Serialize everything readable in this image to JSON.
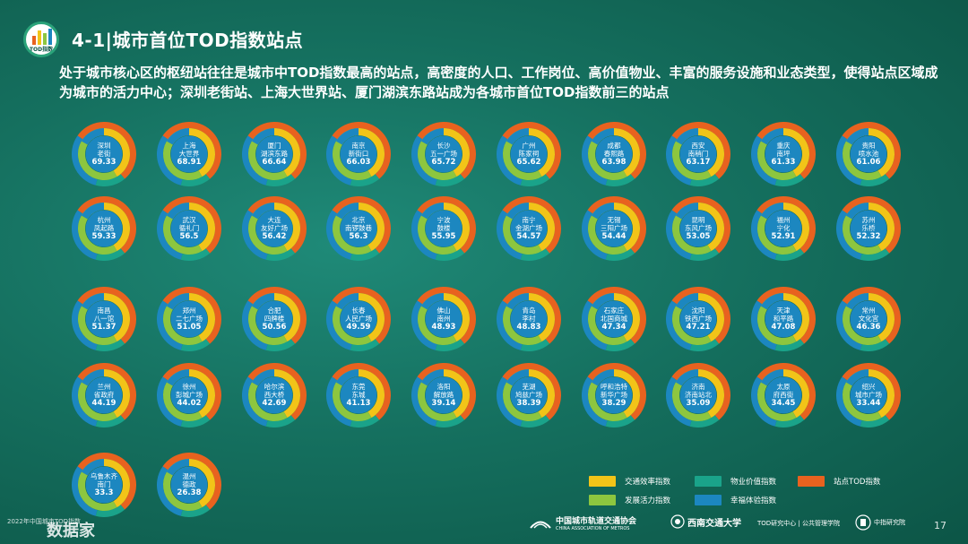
{
  "header": {
    "logo_text": "TOD指数",
    "title": "4-1|城市首位TOD指数站点",
    "intro": "处于城市核心区的枢纽站往往是城市中TOD指数最高的站点，高密度的人口、工作岗位、高价值物业、丰富的服务设施和业态类型，使得站点区域成为城市的活力中心；深圳老街站、上海大世界站、厦门湖滨东路站成为各城市首位TOD指数前三的站点"
  },
  "colors": {
    "traffic": "#f2c418",
    "property": "#1aa38a",
    "tod": "#e8621f",
    "development": "#8dc63f",
    "experience": "#1c87c0"
  },
  "stations": [
    {
      "city": "深圳",
      "station": "老街",
      "score": "69.33"
    },
    {
      "city": "上海",
      "station": "大世界",
      "score": "68.91"
    },
    {
      "city": "厦门",
      "station": "湖滨东路",
      "score": "66.64"
    },
    {
      "city": "南京",
      "station": "新街口",
      "score": "66.03"
    },
    {
      "city": "长沙",
      "station": "五一广场",
      "score": "65.72"
    },
    {
      "city": "广州",
      "station": "陈家祠",
      "score": "65.62"
    },
    {
      "city": "成都",
      "station": "春熙路",
      "score": "63.98"
    },
    {
      "city": "西安",
      "station": "南稍门",
      "score": "63.17"
    },
    {
      "city": "重庆",
      "station": "南坪",
      "score": "61.33"
    },
    {
      "city": "贵阳",
      "station": "喷水池",
      "score": "61.06"
    },
    {
      "city": "杭州",
      "station": "凤起路",
      "score": "59.33"
    },
    {
      "city": "武汉",
      "station": "循礼门",
      "score": "56.5"
    },
    {
      "city": "大连",
      "station": "友好广场",
      "score": "56.42"
    },
    {
      "city": "北京",
      "station": "南锣鼓巷",
      "score": "56.3"
    },
    {
      "city": "宁波",
      "station": "鼓楼",
      "score": "55.95"
    },
    {
      "city": "南宁",
      "station": "金湖广场",
      "score": "54.57"
    },
    {
      "city": "无锡",
      "station": "三阳广场",
      "score": "54.44"
    },
    {
      "city": "昆明",
      "station": "东风广场",
      "score": "53.05"
    },
    {
      "city": "福州",
      "station": "宁化",
      "score": "52.91"
    },
    {
      "city": "苏州",
      "station": "乐桥",
      "score": "52.32"
    },
    {
      "city": "南昌",
      "station": "八一馆",
      "score": "51.37"
    },
    {
      "city": "郑州",
      "station": "二七广场",
      "score": "51.05"
    },
    {
      "city": "合肥",
      "station": "四牌楼",
      "score": "50.56"
    },
    {
      "city": "长春",
      "station": "人民广场",
      "score": "49.59"
    },
    {
      "city": "佛山",
      "station": "南州",
      "score": "48.93"
    },
    {
      "city": "青岛",
      "station": "李村",
      "score": "48.83"
    },
    {
      "city": "石家庄",
      "station": "北国商城",
      "score": "47.34"
    },
    {
      "city": "沈阳",
      "station": "铁西广场",
      "score": "47.21"
    },
    {
      "city": "天津",
      "station": "和平路",
      "score": "47.08"
    },
    {
      "city": "常州",
      "station": "文化宫",
      "score": "46.36"
    },
    {
      "city": "兰州",
      "station": "省政府",
      "score": "44.19"
    },
    {
      "city": "徐州",
      "station": "彭城广场",
      "score": "44.02"
    },
    {
      "city": "哈尔滨",
      "station": "西大桥",
      "score": "42.69"
    },
    {
      "city": "东莞",
      "station": "东城",
      "score": "41.13"
    },
    {
      "city": "洛阳",
      "station": "解放路",
      "score": "39.14"
    },
    {
      "city": "芜湖",
      "station": "鸠兹广场",
      "score": "38.39"
    },
    {
      "city": "呼和浩特",
      "station": "新华广场",
      "score": "38.29"
    },
    {
      "city": "济南",
      "station": "济南站北",
      "score": "35.09"
    },
    {
      "city": "太原",
      "station": "府西街",
      "score": "34.45"
    },
    {
      "city": "绍兴",
      "station": "城市广场",
      "score": "33.44"
    },
    {
      "city": "乌鲁木齐",
      "station": "南门",
      "score": "33.3"
    },
    {
      "city": "温州",
      "station": "德政",
      "score": "26.38"
    }
  ],
  "legend": [
    {
      "label": "交通效率指数",
      "color": "#f2c418"
    },
    {
      "label": "物业价值指数",
      "color": "#1aa38a"
    },
    {
      "label": "站点TOD指数",
      "color": "#e8621f"
    },
    {
      "label": "发展活力指数",
      "color": "#8dc63f"
    },
    {
      "label": "幸福体验指数",
      "color": "#1c87c0"
    }
  ],
  "footer": {
    "report": "2022年中国城市TOD指数",
    "brand": "数据家",
    "org1": "中国城市轨道交通协会",
    "org1_en": "CHINA ASSOCIATION OF METROS",
    "org2": "西南交通大学",
    "org3": "TOD研究中心 | 公共管理学院",
    "org4": "中指研究院",
    "page": "17"
  }
}
